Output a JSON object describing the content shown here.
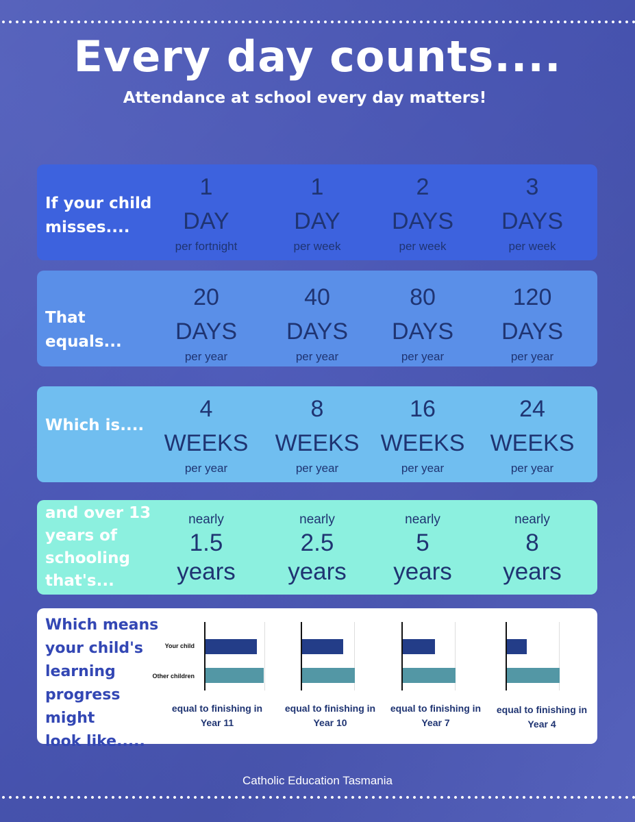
{
  "title": "Every day counts....",
  "subtitle": "Attendance at school every day matters!",
  "row1": {
    "label_line1": "If your child",
    "label_line2": "misses....",
    "cols": [
      {
        "num": "1",
        "unit": "DAY",
        "sub": "per fortnight"
      },
      {
        "num": "1",
        "unit": "DAY",
        "sub": "per week"
      },
      {
        "num": "2",
        "unit": "DAYS",
        "sub": "per week"
      },
      {
        "num": "3",
        "unit": "DAYS",
        "sub": "per week"
      }
    ]
  },
  "row2": {
    "label": "That equals...",
    "cols": [
      {
        "num": "20",
        "unit": "DAYS",
        "sub": "per year"
      },
      {
        "num": "40",
        "unit": "DAYS",
        "sub": "per year"
      },
      {
        "num": "80",
        "unit": "DAYS",
        "sub": "per year"
      },
      {
        "num": "120",
        "unit": "DAYS",
        "sub": "per year"
      }
    ]
  },
  "row3": {
    "label": "Which is....",
    "cols": [
      {
        "num": "4",
        "unit": "WEEKS",
        "sub": "per year"
      },
      {
        "num": "8",
        "unit": "WEEKS",
        "sub": "per year"
      },
      {
        "num": "16",
        "unit": "WEEKS",
        "sub": "per year"
      },
      {
        "num": "24",
        "unit": "WEEKS",
        "sub": "per year"
      }
    ]
  },
  "row4": {
    "label_lines": [
      "and over 13",
      "years of",
      "schooling",
      "that's..."
    ],
    "cols": [
      {
        "nearly": "nearly",
        "num": "1.5",
        "unit": "years"
      },
      {
        "nearly": "nearly",
        "num": "2.5",
        "unit": "years"
      },
      {
        "nearly": "nearly",
        "num": "5",
        "unit": "years"
      },
      {
        "nearly": "nearly",
        "num": "8",
        "unit": "years"
      }
    ]
  },
  "row5": {
    "label_lines": [
      "Which means",
      "your child's",
      "learning",
      "progress might",
      "look like....."
    ],
    "bar_labels": {
      "your_child": "Your child",
      "other_children": "Other children"
    },
    "charts": [
      {
        "your_child": 0.88,
        "other_children": 1.0,
        "caption_line1": "equal to finishing in",
        "caption_line2": "Year 11"
      },
      {
        "your_child": 0.78,
        "other_children": 1.0,
        "caption_line1": "equal to finishing in",
        "caption_line2": "Year 10"
      },
      {
        "your_child": 0.62,
        "other_children": 1.0,
        "caption_line1": "equal to finishing in",
        "caption_line2": "Year 7"
      },
      {
        "your_child": 0.38,
        "other_children": 1.0,
        "caption_line1": "equal to finishing in",
        "caption_line2": "Year 4"
      }
    ],
    "colors": {
      "your_child": "#233d88",
      "other_children": "#5397a5"
    }
  },
  "footer": "Catholic Education Tasmania"
}
